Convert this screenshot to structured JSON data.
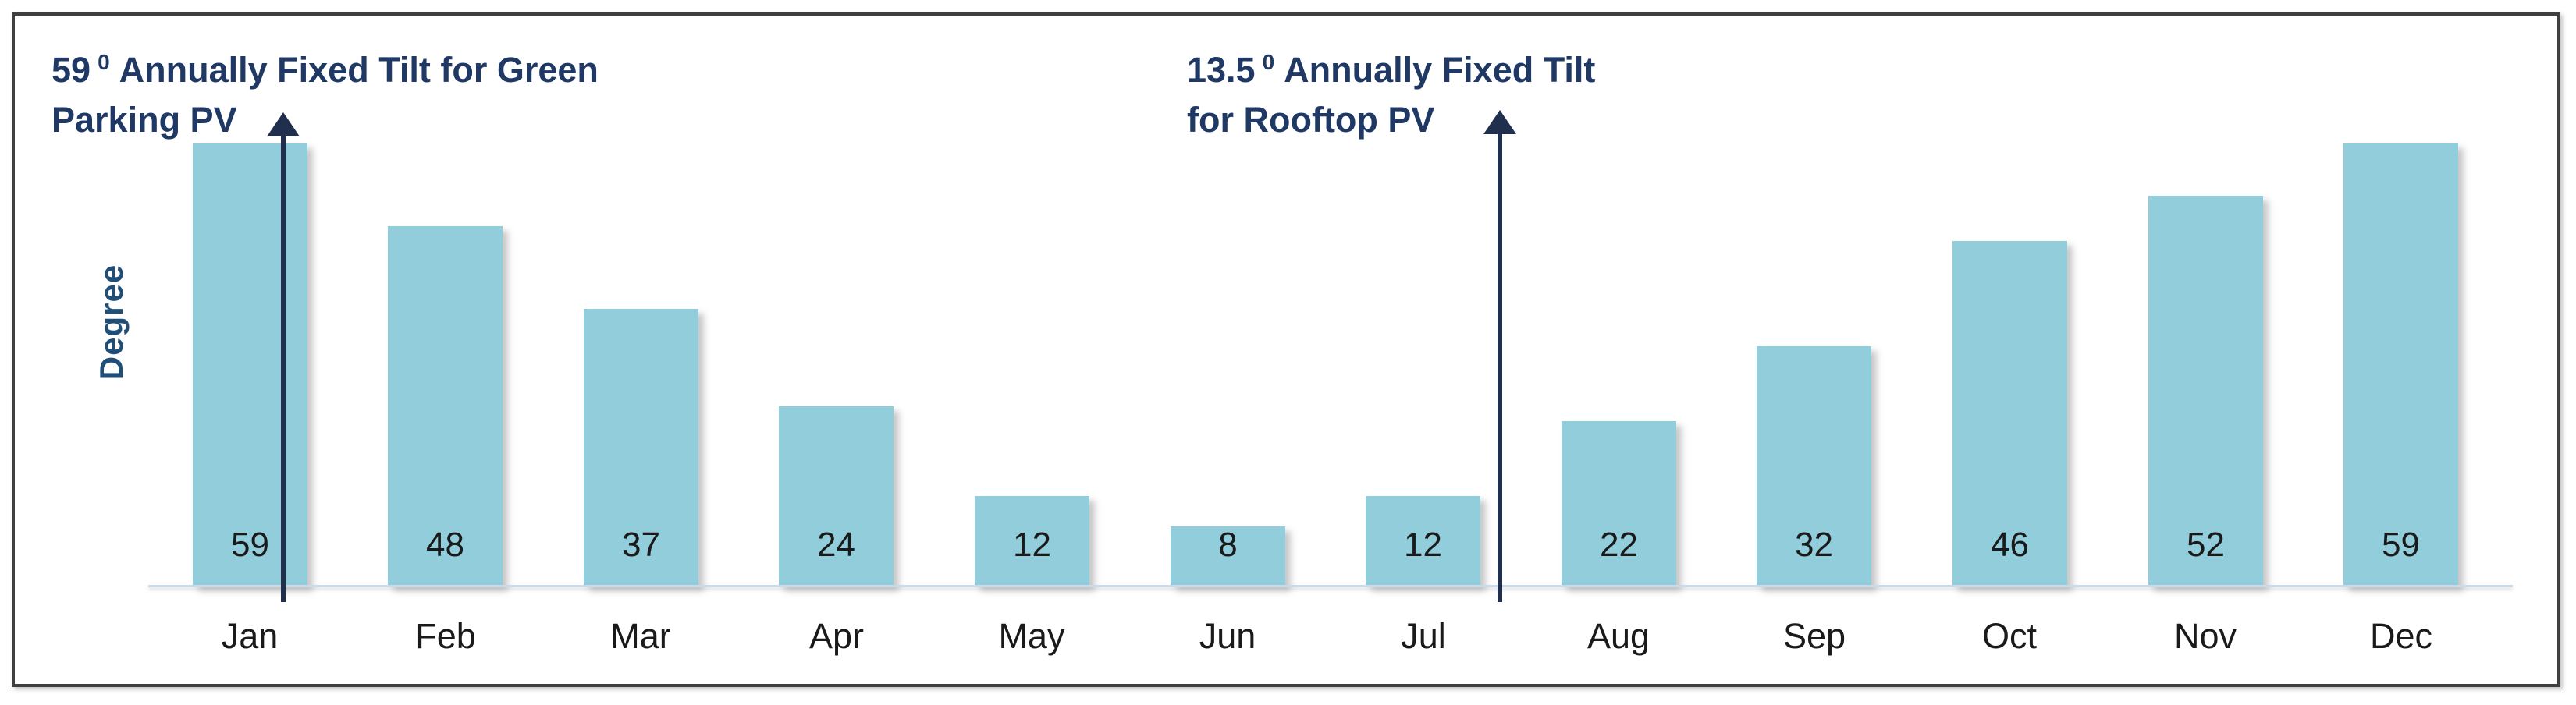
{
  "chart_data": {
    "type": "bar",
    "title": "",
    "categories": [
      "Jan",
      "Feb",
      "Mar",
      "Apr",
      "May",
      "Jun",
      "Jul",
      "Aug",
      "Sep",
      "Oct",
      "Nov",
      "Dec"
    ],
    "values": [
      59,
      48,
      37,
      24,
      12,
      8,
      12,
      22,
      32,
      46,
      52,
      59
    ],
    "xlabel": "",
    "ylabel": "Degree",
    "ylim": [
      0,
      62
    ],
    "grid": false,
    "legend": "none",
    "data_label_position": "inside-base",
    "annotations": [
      {
        "value": "59",
        "sup": "0",
        "rest": "Annually Fixed Tilt for Green",
        "line2": "Parking PV",
        "arrow_at": "Jan"
      },
      {
        "value": "13.5",
        "sup": "0",
        "rest": "Annually Fixed Tilt",
        "line2": "for Rooftop PV",
        "arrow_at": "after Jul"
      }
    ]
  },
  "colors": {
    "background": "#FFFFFF",
    "frame_border": "#3F3F3F",
    "bar_fill": "#92CDDC",
    "baseline": "#C9DAEB",
    "annotation_text": "#1F3864",
    "axis_title": "#1F4E79",
    "arrow": "#1F2F4D",
    "label_text": "#1A1A1A"
  }
}
